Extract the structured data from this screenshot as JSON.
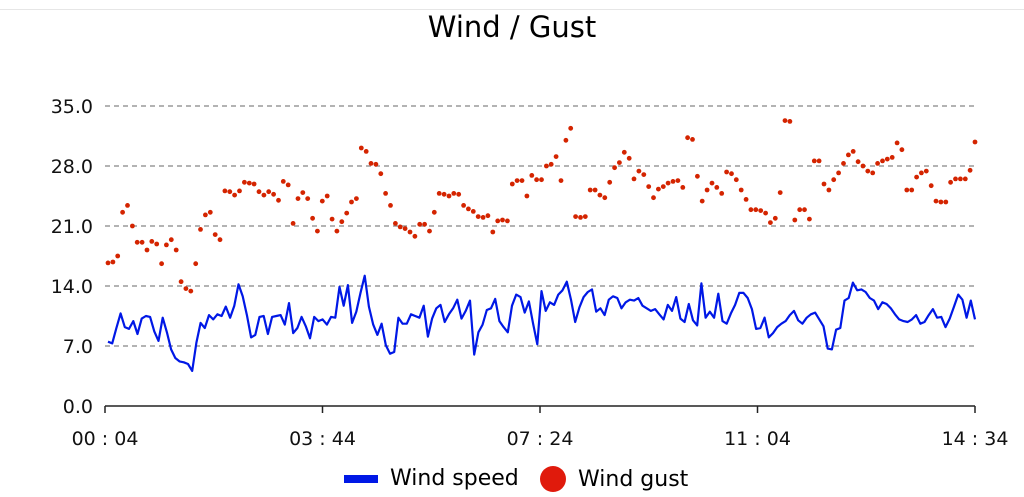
{
  "chart_data": {
    "type": "line",
    "title": "Wind / Gust",
    "xlabel": "",
    "ylabel": "",
    "ylim": [
      0,
      35
    ],
    "y_ticks": [
      "0.0",
      "7.0",
      "14.0",
      "21.0",
      "28.0",
      "35.0"
    ],
    "x_ticks": [
      "00 : 04",
      "03 : 44",
      "07 : 24",
      "11 : 04",
      "14 : 34"
    ],
    "x_range": [
      "00:04",
      "14:34"
    ],
    "grid": "horizontal dashed",
    "legend_position": "bottom",
    "series": [
      {
        "name": "Wind speed",
        "style": "line",
        "color": "#0018e6",
        "values": [
          7.5,
          7.3,
          9.1,
          10.8,
          9.2,
          9.0,
          9.9,
          8.4,
          10.2,
          10.5,
          10.4,
          8.7,
          7.6,
          10.3,
          8.6,
          6.6,
          5.6,
          5.2,
          5.1,
          4.9,
          4.1,
          7.4,
          9.7,
          9.1,
          10.6,
          10.1,
          10.7,
          10.5,
          11.6,
          10.3,
          11.7,
          14.2,
          12.8,
          10.6,
          8.0,
          8.3,
          10.4,
          10.5,
          8.4,
          10.4,
          10.5,
          10.6,
          9.5,
          12.0,
          8.5,
          9.1,
          10.4,
          9.3,
          7.9,
          10.4,
          9.9,
          10.1,
          9.5,
          10.4,
          10.3,
          13.9,
          11.7,
          14.1,
          9.7,
          11.0,
          13.2,
          15.2,
          11.6,
          9.5,
          8.3,
          9.6,
          7.1,
          6.1,
          6.3,
          10.3,
          9.6,
          9.6,
          10.7,
          10.5,
          10.3,
          11.7,
          8.1,
          10.2,
          11.4,
          11.8,
          9.8,
          10.7,
          11.4,
          12.4,
          10.2,
          11.1,
          12.3,
          6.0,
          8.6,
          9.5,
          11.2,
          11.4,
          12.5,
          9.9,
          9.2,
          8.6,
          11.7,
          13.0,
          12.7,
          10.9,
          12.2,
          9.6,
          7.2,
          13.4,
          11.1,
          12.1,
          11.8,
          13.0,
          13.5,
          14.5,
          12.4,
          9.8,
          11.5,
          12.7,
          13.3,
          13.6,
          11.0,
          11.4,
          10.6,
          12.4,
          12.8,
          12.6,
          11.4,
          12.1,
          12.4,
          12.3,
          12.6,
          11.7,
          11.4,
          11.1,
          11.3,
          10.7,
          10.1,
          11.8,
          11.1,
          12.7,
          10.2,
          9.8,
          11.9,
          10.0,
          9.4,
          14.3,
          10.3,
          11.0,
          10.3,
          13.1,
          9.9,
          9.6,
          10.8,
          11.8,
          13.2,
          13.2,
          12.6,
          11.3,
          9.0,
          9.1,
          10.3,
          8.0,
          8.5,
          9.2,
          9.6,
          9.9,
          10.6,
          11.1,
          10.0,
          9.6,
          10.3,
          10.7,
          10.9,
          10.1,
          9.3,
          6.7,
          6.6,
          8.9,
          9.1,
          12.3,
          12.6,
          14.4,
          13.5,
          13.6,
          13.3,
          12.6,
          12.3,
          11.3,
          12.1,
          11.9,
          11.4,
          10.7,
          10.1,
          9.9,
          9.8,
          10.1,
          10.6,
          9.6,
          9.8,
          10.6,
          11.3,
          10.3,
          10.4,
          9.2,
          10.2,
          11.6,
          13.0,
          12.4,
          10.3,
          12.3,
          10.1
        ]
      },
      {
        "name": "Wind gust",
        "style": "points",
        "color": "#d42400",
        "values": [
          16.7,
          16.8,
          17.5,
          22.6,
          23.4,
          21.0,
          19.1,
          19.1,
          18.2,
          19.2,
          18.9,
          16.6,
          18.8,
          19.4,
          18.2,
          14.5,
          13.7,
          13.4,
          16.6,
          20.6,
          22.3,
          22.6,
          20.0,
          19.4,
          25.1,
          25.0,
          24.6,
          25.1,
          26.1,
          26.0,
          25.9,
          25.0,
          24.6,
          25.0,
          24.7,
          24.0,
          26.2,
          25.8,
          21.3,
          24.2,
          24.9,
          24.2,
          21.9,
          20.4,
          23.9,
          24.5,
          21.8,
          20.4,
          21.5,
          22.5,
          23.8,
          24.2,
          30.1,
          29.7,
          28.3,
          28.2,
          27.1,
          24.8,
          23.4,
          21.3,
          20.9,
          20.7,
          20.3,
          19.8,
          21.2,
          21.2,
          20.4,
          22.6,
          24.8,
          24.7,
          24.5,
          24.8,
          24.7,
          23.4,
          23.0,
          22.7,
          22.1,
          22.0,
          22.2,
          20.3,
          21.6,
          21.7,
          21.6,
          25.9,
          26.3,
          26.3,
          24.5,
          26.9,
          26.4,
          26.4,
          28.0,
          28.2,
          29.1,
          26.3,
          31.0,
          32.4,
          22.1,
          22.0,
          22.1,
          25.2,
          25.2,
          24.6,
          24.3,
          26.1,
          27.8,
          28.4,
          29.6,
          28.9,
          26.5,
          27.4,
          27.0,
          25.6,
          24.3,
          25.3,
          25.6,
          26.0,
          26.2,
          26.3,
          25.5,
          31.3,
          31.1,
          26.8,
          23.9,
          25.2,
          26.0,
          25.5,
          24.8,
          27.3,
          27.1,
          26.4,
          25.2,
          24.1,
          22.9,
          22.9,
          22.8,
          22.5,
          21.4,
          21.9,
          24.9,
          33.3,
          33.2,
          21.7,
          22.9,
          22.9,
          21.8,
          28.6,
          28.6,
          25.9,
          25.2,
          26.4,
          27.2,
          28.3,
          29.3,
          29.7,
          28.5,
          28.0,
          27.4,
          27.2,
          28.3,
          28.6,
          28.8,
          29.0,
          30.7,
          29.9,
          25.2,
          25.2,
          26.7,
          27.2,
          27.4,
          25.7,
          23.9,
          23.8,
          23.8,
          26.1,
          26.5,
          26.5,
          26.5,
          27.5,
          30.8
        ]
      }
    ]
  },
  "legend": {
    "wind_speed_label": "Wind speed",
    "wind_gust_label": "Wind gust"
  }
}
